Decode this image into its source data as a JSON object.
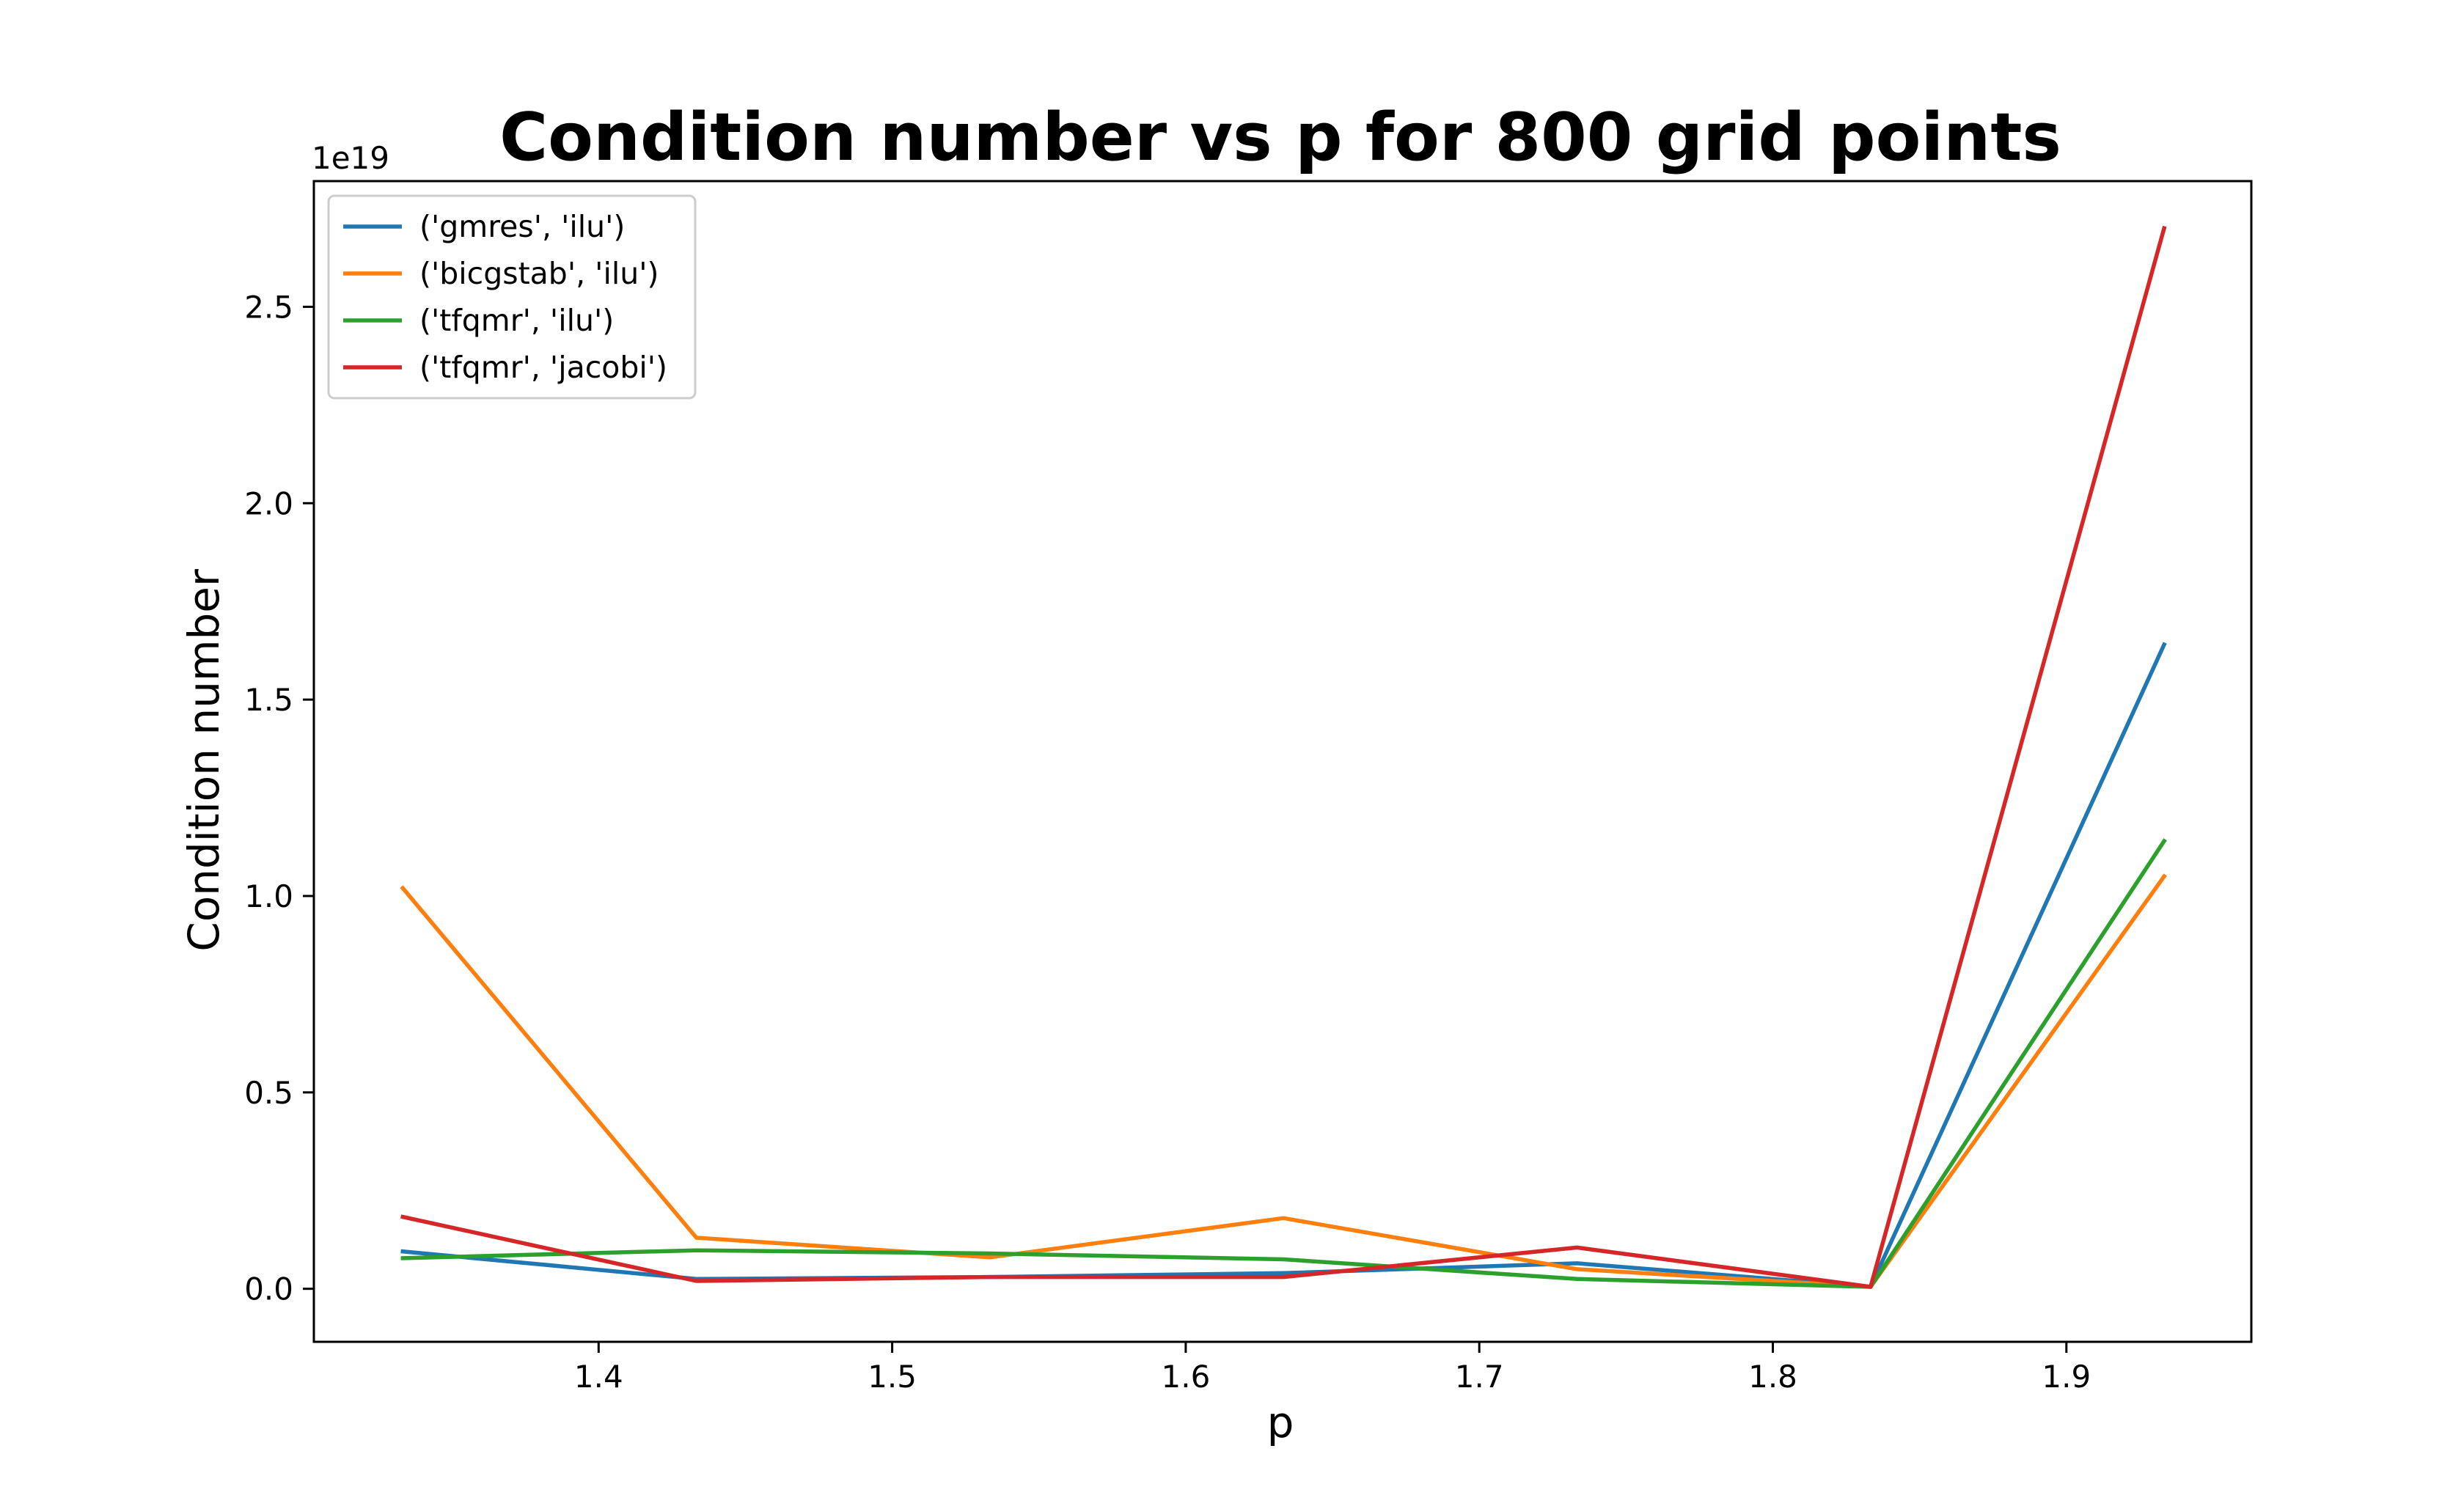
{
  "chart_data": {
    "type": "line",
    "title": "Condition number vs p for 800 grid points",
    "xlabel": "p",
    "ylabel": "Condition number",
    "y_offset_label": "1e19",
    "xlim": [
      1.303,
      1.963
    ],
    "ylim": [
      -0.135,
      2.82
    ],
    "x_ticks": [
      1.4,
      1.5,
      1.6,
      1.7,
      1.8,
      1.9
    ],
    "x_tick_labels": [
      "1.4",
      "1.5",
      "1.6",
      "1.7",
      "1.8",
      "1.9"
    ],
    "y_ticks": [
      0.0,
      0.5,
      1.0,
      1.5,
      2.0,
      2.5
    ],
    "y_tick_labels": [
      "0.0",
      "0.5",
      "1.0",
      "1.5",
      "2.0",
      "2.5"
    ],
    "x": [
      1.3333,
      1.4333,
      1.5333,
      1.6333,
      1.7333,
      1.8333,
      1.9333
    ],
    "grid": false,
    "legend_position": "upper-left",
    "series": [
      {
        "name": "('gmres', 'ilu')",
        "color": "#1f77b4",
        "values": [
          0.095,
          0.025,
          0.03,
          0.04,
          0.065,
          0.005,
          1.64
        ]
      },
      {
        "name": "('bicgstab', 'ilu')",
        "color": "#ff7f0e",
        "values": [
          1.02,
          0.13,
          0.08,
          0.18,
          0.05,
          0.005,
          1.05
        ]
      },
      {
        "name": "('tfqmr', 'ilu')",
        "color": "#2ca02c",
        "values": [
          0.078,
          0.098,
          0.09,
          0.075,
          0.025,
          0.005,
          1.14
        ]
      },
      {
        "name": "('tfqmr', 'jacobi')",
        "color": "#d62728",
        "values": [
          0.183,
          0.02,
          0.03,
          0.03,
          0.105,
          0.005,
          2.7
        ]
      }
    ]
  }
}
